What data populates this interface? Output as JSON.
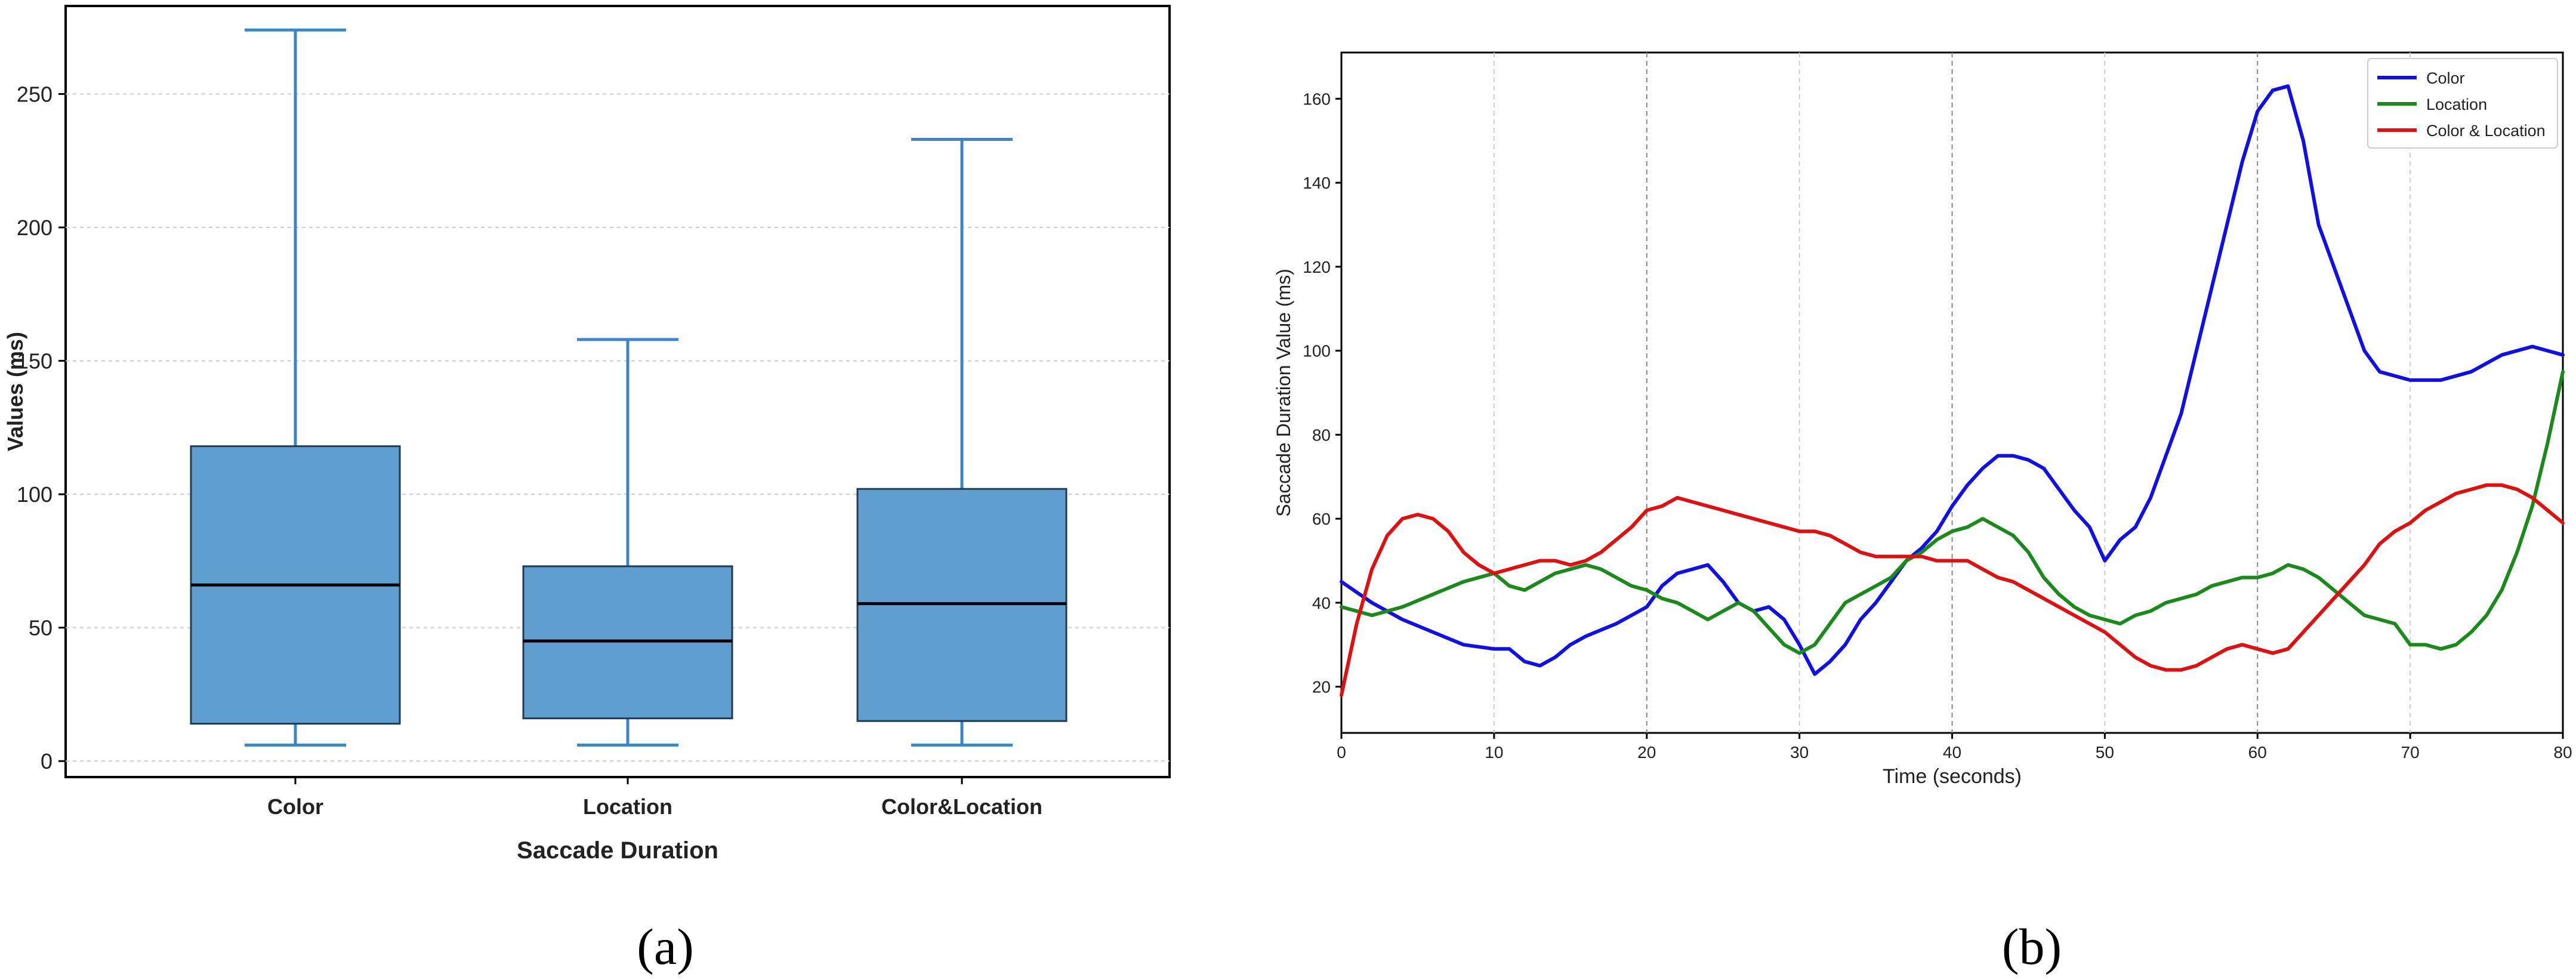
{
  "captions": {
    "a": "(a)",
    "b": "(b)"
  },
  "colors": {
    "box_fill": "#5f9ecf",
    "box_edge": "#1f3b57",
    "whisker": "#3a86c8",
    "median": "#000000",
    "grid": "#cccccc",
    "color_series": "#1010e6",
    "location_series": "#1a8a1a",
    "color_location_series": "#e01010"
  },
  "chart_data": [
    {
      "type": "box",
      "title": "",
      "xlabel": "Saccade Duration",
      "ylabel": "Values (ms)",
      "ylim": [
        -6,
        283
      ],
      "yticks": [
        0,
        50,
        100,
        150,
        200,
        250
      ],
      "grid": "horizontal dashed",
      "categories": [
        "Color",
        "Location",
        "Color&Location"
      ],
      "boxes": [
        {
          "category": "Color",
          "min": 6,
          "q1": 14,
          "median": 66,
          "q3": 118,
          "max": 274
        },
        {
          "category": "Location",
          "min": 6,
          "q1": 16,
          "median": 45,
          "q3": 73,
          "max": 158
        },
        {
          "category": "Color&Location",
          "min": 6,
          "q1": 15,
          "median": 59,
          "q3": 102,
          "max": 233
        }
      ]
    },
    {
      "type": "line",
      "title": "",
      "xlabel": "Time (seconds)",
      "ylabel": "Saccade Duration Value (ms)",
      "xlim": [
        0,
        80
      ],
      "ylim": [
        9,
        171
      ],
      "xticks": [
        0,
        10,
        20,
        30,
        40,
        50,
        60,
        70,
        80
      ],
      "yticks": [
        20,
        40,
        60,
        80,
        100,
        120,
        140,
        160
      ],
      "grid": "vertical dashed",
      "legend": "top-right",
      "series": [
        {
          "name": "Color",
          "x": [
            0,
            2,
            4,
            6,
            8,
            10,
            11,
            12,
            13,
            14,
            15,
            16,
            18,
            20,
            21,
            22,
            23,
            24,
            25,
            26,
            27,
            28,
            29,
            30,
            31,
            32,
            33,
            34,
            35,
            36,
            37,
            38,
            39,
            40,
            41,
            42,
            43,
            44,
            45,
            46,
            47,
            48,
            49,
            50,
            51,
            52,
            53,
            54,
            55,
            56,
            57,
            58,
            59,
            60,
            61,
            62,
            63,
            64,
            65,
            66,
            67,
            68,
            69,
            70,
            71,
            72,
            74,
            76,
            78,
            80
          ],
          "y": [
            45,
            40,
            36,
            33,
            30,
            29,
            29,
            26,
            25,
            27,
            30,
            32,
            35,
            39,
            44,
            47,
            48,
            49,
            45,
            40,
            38,
            39,
            36,
            30,
            23,
            26,
            30,
            36,
            40,
            45,
            50,
            53,
            57,
            63,
            68,
            72,
            75,
            75,
            74,
            72,
            67,
            62,
            58,
            50,
            55,
            58,
            65,
            75,
            85,
            100,
            115,
            130,
            145,
            157,
            162,
            163,
            150,
            130,
            120,
            110,
            100,
            95,
            94,
            93,
            93,
            93,
            95,
            99,
            101,
            99
          ]
        },
        {
          "name": "Location",
          "x": [
            0,
            2,
            4,
            6,
            8,
            10,
            11,
            12,
            13,
            14,
            15,
            16,
            17,
            18,
            19,
            20,
            21,
            22,
            23,
            24,
            25,
            26,
            27,
            28,
            29,
            30,
            31,
            32,
            33,
            34,
            35,
            36,
            37,
            38,
            39,
            40,
            41,
            42,
            43,
            44,
            45,
            46,
            47,
            48,
            49,
            50,
            51,
            52,
            53,
            54,
            55,
            56,
            57,
            58,
            59,
            60,
            61,
            62,
            63,
            64,
            65,
            66,
            67,
            68,
            69,
            70,
            71,
            72,
            73,
            74,
            75,
            76,
            77,
            78,
            79,
            80
          ],
          "y": [
            39,
            37,
            39,
            42,
            45,
            47,
            44,
            43,
            45,
            47,
            48,
            49,
            48,
            46,
            44,
            43,
            41,
            40,
            38,
            36,
            38,
            40,
            38,
            34,
            30,
            28,
            30,
            35,
            40,
            42,
            44,
            46,
            50,
            52,
            55,
            57,
            58,
            60,
            58,
            56,
            52,
            46,
            42,
            39,
            37,
            36,
            35,
            37,
            38,
            40,
            41,
            42,
            44,
            45,
            46,
            46,
            47,
            49,
            48,
            46,
            43,
            40,
            37,
            36,
            35,
            30,
            30,
            29,
            30,
            33,
            37,
            43,
            52,
            63,
            78,
            95
          ]
        },
        {
          "name": "Color & Location",
          "x": [
            0,
            1,
            2,
            3,
            4,
            5,
            6,
            7,
            8,
            9,
            10,
            11,
            12,
            13,
            14,
            15,
            16,
            17,
            18,
            19,
            20,
            21,
            22,
            23,
            24,
            25,
            26,
            27,
            28,
            29,
            30,
            31,
            32,
            33,
            34,
            35,
            36,
            37,
            38,
            39,
            40,
            41,
            42,
            43,
            44,
            45,
            46,
            47,
            48,
            49,
            50,
            51,
            52,
            53,
            54,
            55,
            56,
            57,
            58,
            59,
            60,
            61,
            62,
            63,
            64,
            65,
            66,
            67,
            68,
            69,
            70,
            71,
            72,
            73,
            74,
            75,
            76,
            77,
            78,
            79,
            80
          ],
          "y": [
            18,
            35,
            48,
            56,
            60,
            61,
            60,
            57,
            52,
            49,
            47,
            48,
            49,
            50,
            50,
            49,
            50,
            52,
            55,
            58,
            62,
            63,
            65,
            64,
            63,
            62,
            61,
            60,
            59,
            58,
            57,
            57,
            56,
            54,
            52,
            51,
            51,
            51,
            51,
            50,
            50,
            50,
            48,
            46,
            45,
            43,
            41,
            39,
            37,
            35,
            33,
            30,
            27,
            25,
            24,
            24,
            25,
            27,
            29,
            30,
            29,
            28,
            29,
            33,
            37,
            41,
            45,
            49,
            54,
            57,
            59,
            62,
            64,
            66,
            67,
            68,
            68,
            67,
            65,
            62,
            59
          ]
        }
      ]
    }
  ]
}
